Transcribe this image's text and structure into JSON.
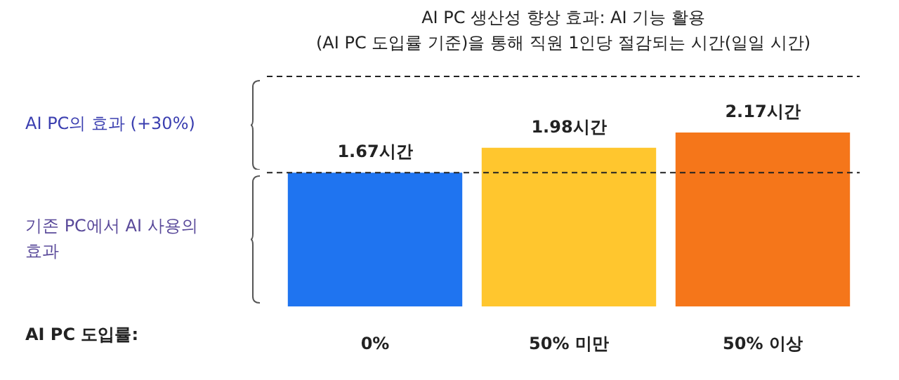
{
  "chart_data": {
    "type": "bar",
    "title": "AI PC 생산성 향상 효과: AI 기능 활용",
    "subtitle": "(AI PC 도입률 기준)을 통해 직원 1인당 절감되는 시간(일일 시간)",
    "categories": [
      "0%",
      "50% 미만",
      "50% 이상"
    ],
    "values": [
      1.67,
      1.98,
      2.17
    ],
    "colors": [
      "#1f74f0",
      "#ffc62e",
      "#f5761a"
    ],
    "value_labels": [
      "1.67시간",
      "1.98시간",
      "2.17시간"
    ],
    "ylim": [
      0,
      2.9
    ],
    "tick_labels": "x",
    "ref_lines": [
      {
        "axis": "y",
        "value": 2.87,
        "color": "#222222",
        "line_style": "dashed"
      },
      {
        "axis": "y",
        "value": 1.67,
        "color": "#222222",
        "line_style": "dashed"
      }
    ],
    "annotations": [
      "AI PC의 효과 (+30%)",
      "기존 PC에서 AI 사용의 효과",
      "AI PC 도입률:"
    ]
  }
}
